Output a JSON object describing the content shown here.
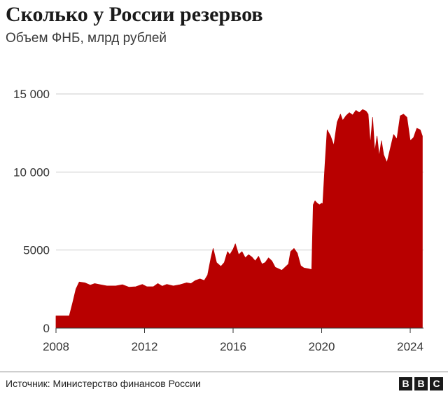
{
  "chart_data": {
    "type": "area",
    "title": "Сколько у России резервов",
    "subtitle": "Объем ФНБ, млрд рублей",
    "xlabel": "",
    "ylabel": "",
    "xlim": [
      2008.0,
      2024.6
    ],
    "ylim": [
      0,
      15000
    ],
    "x_ticks": [
      2008,
      2012,
      2016,
      2020,
      2024
    ],
    "y_ticks": [
      {
        "value": 0,
        "label": "0"
      },
      {
        "value": 5000,
        "label": "5000"
      },
      {
        "value": 10000,
        "label": "10 000"
      },
      {
        "value": 15000,
        "label": "15 000"
      }
    ],
    "grid": true,
    "color": "#b80000",
    "series": [
      {
        "points": [
          [
            2008.0,
            780
          ],
          [
            2008.6,
            780
          ],
          [
            2008.75,
            1600
          ],
          [
            2008.9,
            2500
          ],
          [
            2009.05,
            2950
          ],
          [
            2009.3,
            2900
          ],
          [
            2009.55,
            2750
          ],
          [
            2009.75,
            2850
          ],
          [
            2010.0,
            2780
          ],
          [
            2010.3,
            2700
          ],
          [
            2010.7,
            2700
          ],
          [
            2011.0,
            2780
          ],
          [
            2011.3,
            2620
          ],
          [
            2011.6,
            2650
          ],
          [
            2011.9,
            2800
          ],
          [
            2012.1,
            2650
          ],
          [
            2012.4,
            2650
          ],
          [
            2012.6,
            2850
          ],
          [
            2012.8,
            2680
          ],
          [
            2013.0,
            2800
          ],
          [
            2013.3,
            2700
          ],
          [
            2013.6,
            2780
          ],
          [
            2013.9,
            2900
          ],
          [
            2014.1,
            2850
          ],
          [
            2014.3,
            3050
          ],
          [
            2014.5,
            3150
          ],
          [
            2014.7,
            3050
          ],
          [
            2014.85,
            3400
          ],
          [
            2015.0,
            4500
          ],
          [
            2015.1,
            5100
          ],
          [
            2015.25,
            4200
          ],
          [
            2015.45,
            3950
          ],
          [
            2015.6,
            4200
          ],
          [
            2015.75,
            4900
          ],
          [
            2015.85,
            4700
          ],
          [
            2016.0,
            5050
          ],
          [
            2016.1,
            5400
          ],
          [
            2016.25,
            4700
          ],
          [
            2016.4,
            4900
          ],
          [
            2016.55,
            4500
          ],
          [
            2016.7,
            4700
          ],
          [
            2016.85,
            4550
          ],
          [
            2017.0,
            4300
          ],
          [
            2017.15,
            4600
          ],
          [
            2017.3,
            4100
          ],
          [
            2017.45,
            4200
          ],
          [
            2017.6,
            4500
          ],
          [
            2017.75,
            4300
          ],
          [
            2017.9,
            3900
          ],
          [
            2018.05,
            3800
          ],
          [
            2018.2,
            3700
          ],
          [
            2018.35,
            3900
          ],
          [
            2018.5,
            4100
          ],
          [
            2018.6,
            4900
          ],
          [
            2018.75,
            5100
          ],
          [
            2018.9,
            4800
          ],
          [
            2019.05,
            4000
          ],
          [
            2019.2,
            3850
          ],
          [
            2019.4,
            3800
          ],
          [
            2019.55,
            3750
          ],
          [
            2019.62,
            7900
          ],
          [
            2019.7,
            8150
          ],
          [
            2019.8,
            8000
          ],
          [
            2019.9,
            7900
          ],
          [
            2020.0,
            8000
          ],
          [
            2020.05,
            7950
          ],
          [
            2020.15,
            10500
          ],
          [
            2020.25,
            12700
          ],
          [
            2020.4,
            12300
          ],
          [
            2020.55,
            11700
          ],
          [
            2020.7,
            13200
          ],
          [
            2020.85,
            13700
          ],
          [
            2020.95,
            13300
          ],
          [
            2021.1,
            13600
          ],
          [
            2021.25,
            13800
          ],
          [
            2021.4,
            13650
          ],
          [
            2021.55,
            13950
          ],
          [
            2021.7,
            13800
          ],
          [
            2021.85,
            14000
          ],
          [
            2022.0,
            13900
          ],
          [
            2022.1,
            13700
          ],
          [
            2022.2,
            11800
          ],
          [
            2022.3,
            13500
          ],
          [
            2022.4,
            11300
          ],
          [
            2022.5,
            12300
          ],
          [
            2022.6,
            11000
          ],
          [
            2022.7,
            12000
          ],
          [
            2022.8,
            11100
          ],
          [
            2022.95,
            10600
          ],
          [
            2023.1,
            11500
          ],
          [
            2023.25,
            12400
          ],
          [
            2023.4,
            12100
          ],
          [
            2023.55,
            13600
          ],
          [
            2023.7,
            13700
          ],
          [
            2023.85,
            13500
          ],
          [
            2024.0,
            12000
          ],
          [
            2024.15,
            12200
          ],
          [
            2024.3,
            12800
          ],
          [
            2024.45,
            12700
          ],
          [
            2024.55,
            12300
          ]
        ]
      }
    ]
  },
  "footer": {
    "source": "Источник: Министерство финансов России",
    "logo_letters": [
      "B",
      "B",
      "C"
    ]
  }
}
